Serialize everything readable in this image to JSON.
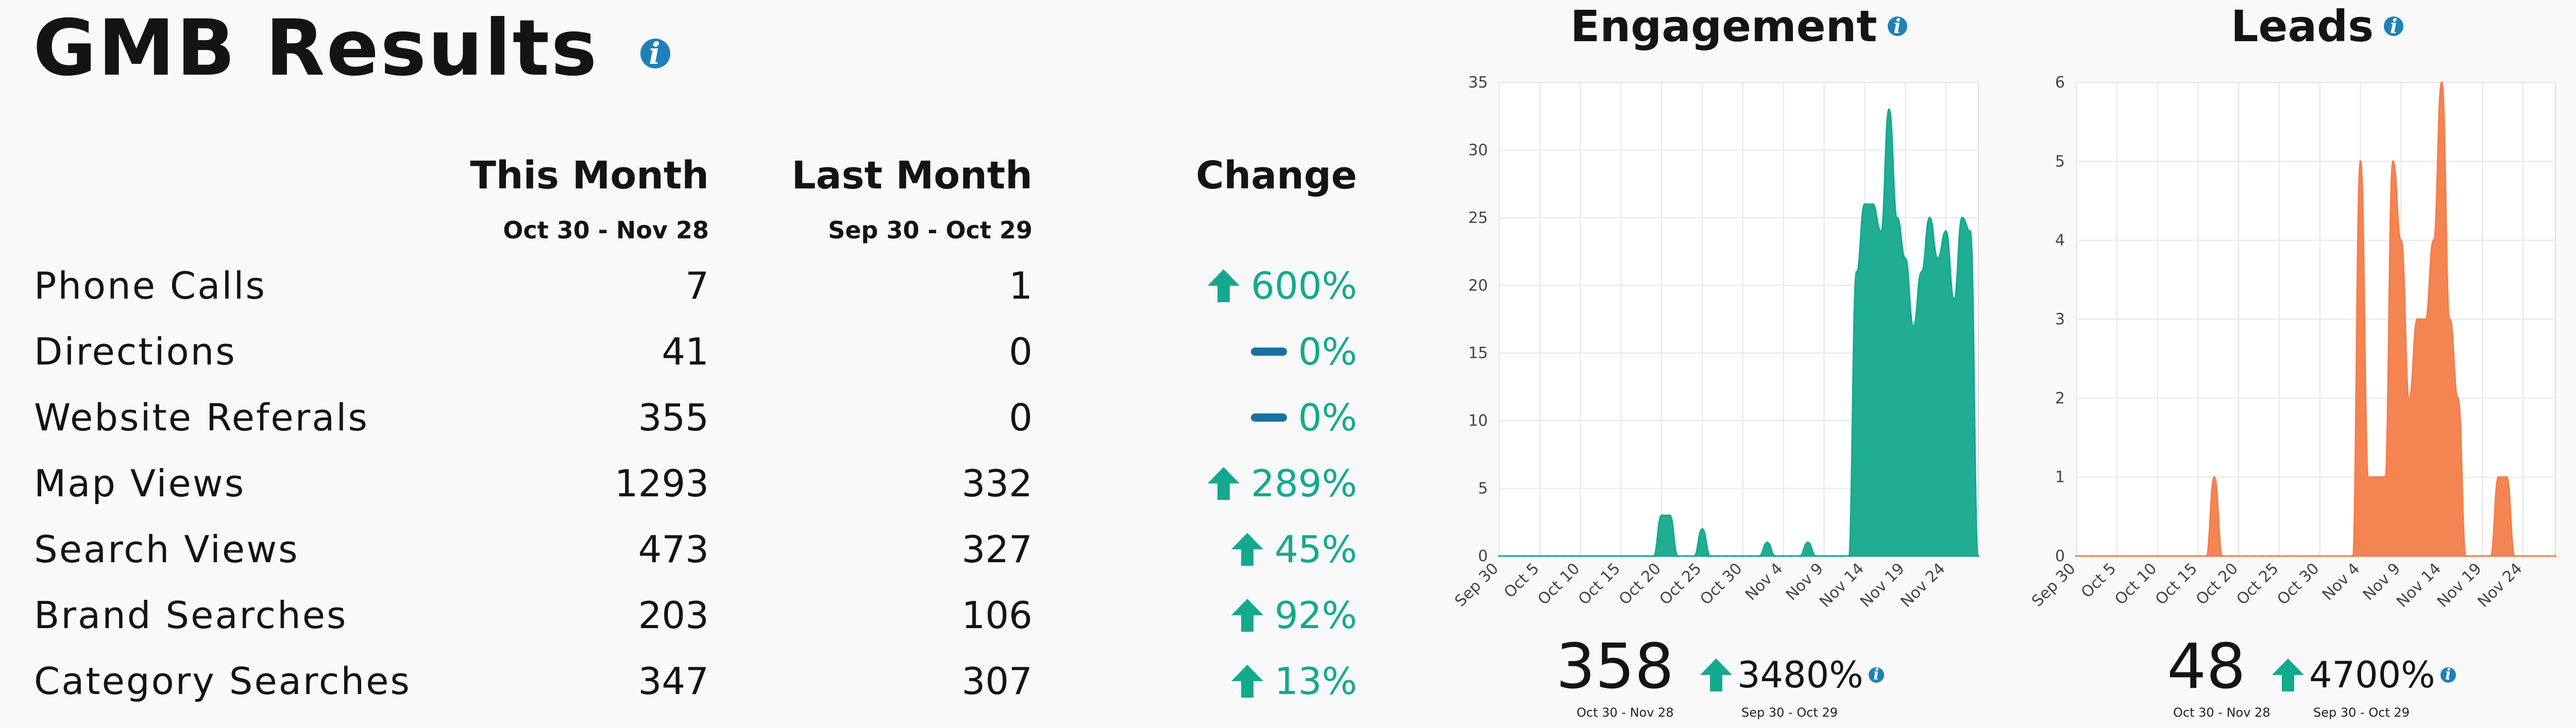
{
  "title": "GMB Results",
  "info_icon": "i",
  "columns": {
    "this_month": "This Month",
    "this_month_range": "Oct 30 - Nov 28",
    "last_month": "Last Month",
    "last_month_range": "Sep 30 - Oct 29",
    "change": "Change"
  },
  "rows": [
    {
      "label": "Phone Calls",
      "this_month": "7",
      "last_month": "1",
      "change": "600%",
      "trend": "up"
    },
    {
      "label": "Directions",
      "this_month": "41",
      "last_month": "0",
      "change": "0%",
      "trend": "flat"
    },
    {
      "label": "Website Referals",
      "this_month": "355",
      "last_month": "0",
      "change": "0%",
      "trend": "flat"
    },
    {
      "label": "Map Views",
      "this_month": "1293",
      "last_month": "332",
      "change": "289%",
      "trend": "up"
    },
    {
      "label": "Search Views",
      "this_month": "473",
      "last_month": "327",
      "change": "45%",
      "trend": "up"
    },
    {
      "label": "Brand Searches",
      "this_month": "203",
      "last_month": "106",
      "change": "92%",
      "trend": "up"
    },
    {
      "label": "Category Searches",
      "this_month": "347",
      "last_month": "307",
      "change": "13%",
      "trend": "up"
    }
  ],
  "colors": {
    "up": "#14a98d",
    "flat": "#1672a3",
    "info": "#1f80b8",
    "engagement": "#14a98d",
    "leads": "#f47d4a",
    "grid": "#e6e6e6"
  },
  "chart_data": [
    {
      "type": "area",
      "title": "Engagement",
      "x_tick_labels": [
        "Sep 30",
        "Oct 5",
        "Oct 10",
        "Oct 15",
        "Oct 20",
        "Oct 25",
        "Oct 30",
        "Nov 4",
        "Nov 9",
        "Nov 14",
        "Nov 19",
        "Nov 24"
      ],
      "x_tick_day_index": [
        0,
        5,
        10,
        15,
        20,
        25,
        30,
        35,
        40,
        45,
        50,
        55
      ],
      "day_count": 60,
      "ylim": [
        0,
        35
      ],
      "y_ticks": [
        0,
        5,
        10,
        15,
        20,
        25,
        30,
        35
      ],
      "values": [
        0,
        0,
        0,
        0,
        0,
        0,
        0,
        0,
        0,
        0,
        0,
        0,
        0,
        0,
        0,
        0,
        0,
        0,
        0,
        0,
        3,
        3,
        0,
        0,
        0,
        2,
        0,
        0,
        0,
        0,
        0,
        0,
        0,
        1,
        0,
        0,
        0,
        0,
        1,
        0,
        0,
        0,
        0,
        0,
        21,
        26,
        26,
        24,
        33,
        25,
        22,
        17,
        21,
        25,
        22,
        24,
        19,
        25,
        24,
        0
      ],
      "total": "358",
      "total_range": "Oct 30 - Nov 28",
      "change": "3480%",
      "compare_range": "Sep 30 - Oct 29"
    },
    {
      "type": "area",
      "title": "Leads",
      "x_tick_labels": [
        "Sep 30",
        "Oct 5",
        "Oct 10",
        "Oct 15",
        "Oct 20",
        "Oct 25",
        "Oct 30",
        "Nov 4",
        "Nov 9",
        "Nov 14",
        "Nov 19",
        "Nov 24"
      ],
      "x_tick_day_index": [
        0,
        5,
        10,
        15,
        20,
        25,
        30,
        35,
        40,
        45,
        50,
        55
      ],
      "day_count": 60,
      "ylim": [
        0,
        6
      ],
      "y_ticks": [
        0,
        1,
        2,
        3,
        4,
        5,
        6
      ],
      "values": [
        0,
        0,
        0,
        0,
        0,
        0,
        0,
        0,
        0,
        0,
        0,
        0,
        0,
        0,
        0,
        0,
        0,
        1,
        0,
        0,
        0,
        0,
        0,
        0,
        0,
        0,
        0,
        0,
        0,
        0,
        0,
        0,
        0,
        0,
        0,
        5,
        1,
        1,
        1,
        5,
        4,
        2,
        3,
        3,
        4,
        6,
        3,
        2,
        0,
        0,
        0,
        0,
        1,
        1,
        0,
        0,
        0,
        0,
        0,
        0
      ],
      "total": "48",
      "total_range": "Oct 30 - Nov 28",
      "change": "4700%",
      "compare_range": "Sep 30 - Oct 29"
    }
  ]
}
